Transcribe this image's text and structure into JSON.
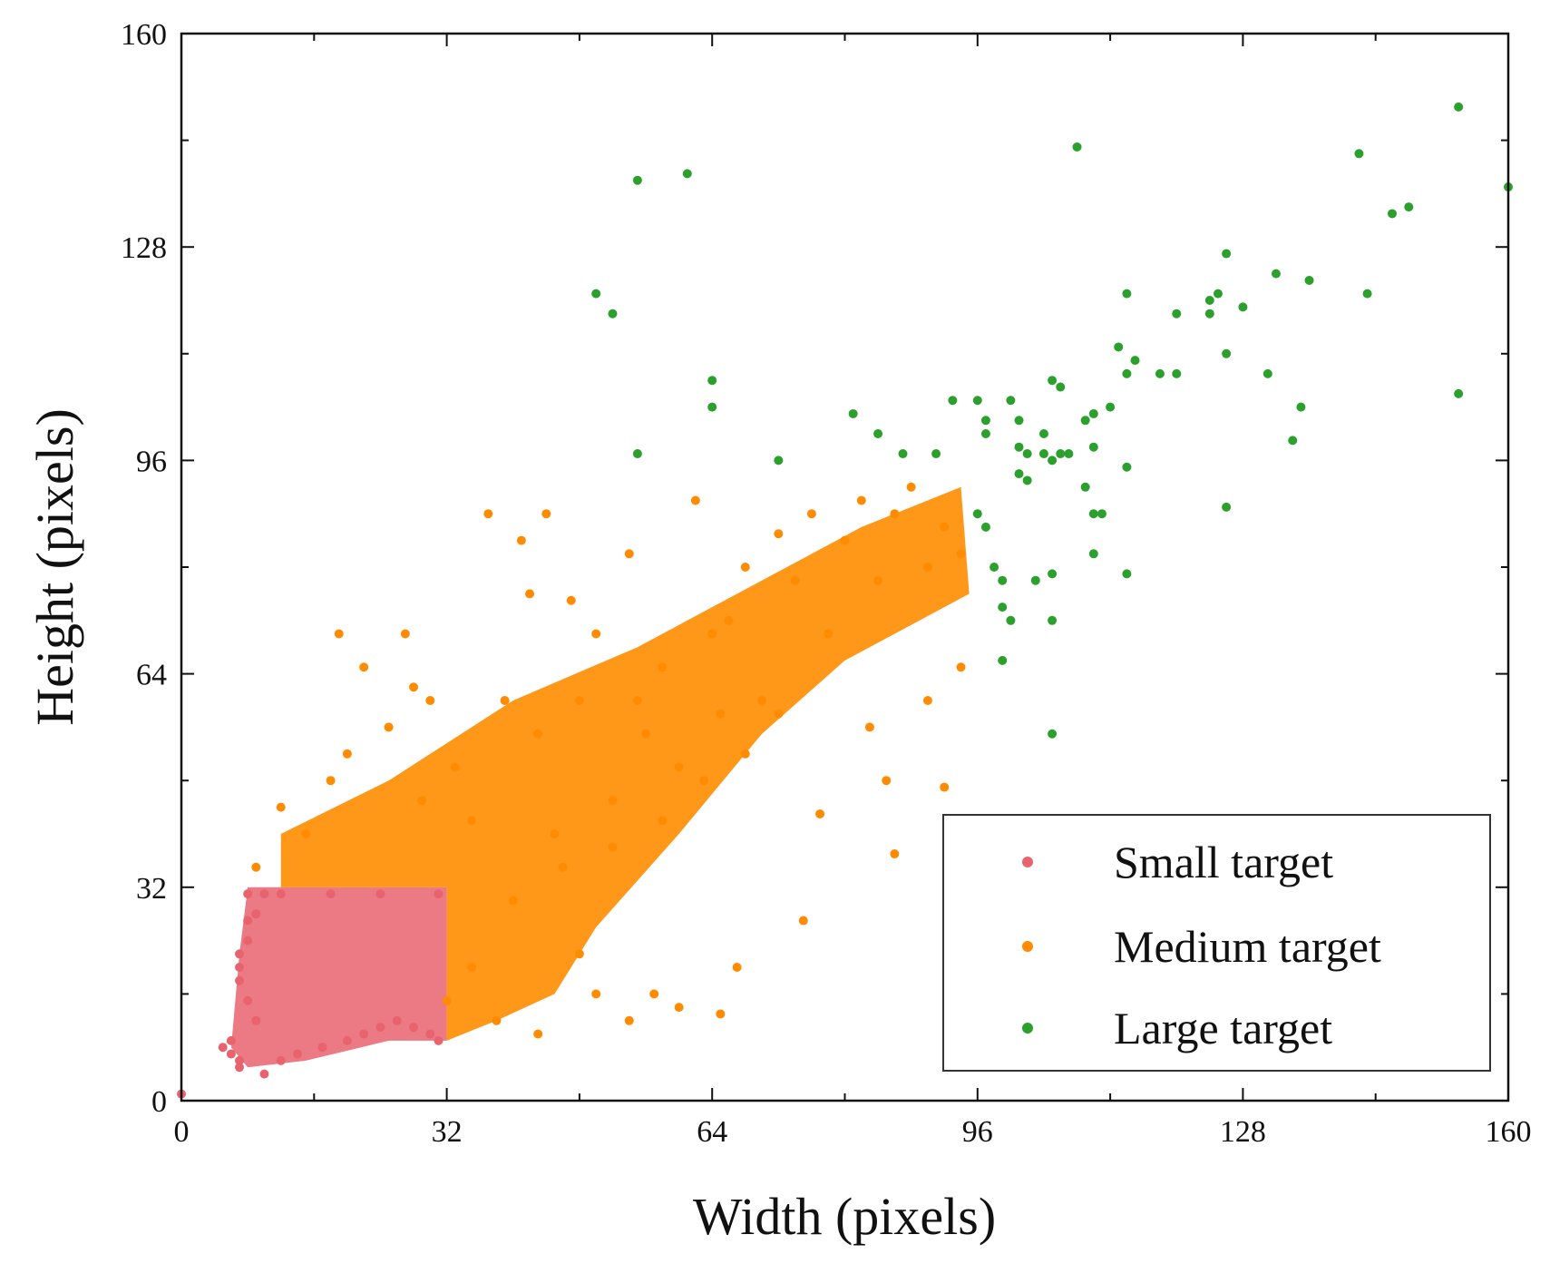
{
  "chart_data": {
    "type": "scatter",
    "title": "",
    "xlabel": "Width (pixels)",
    "ylabel": "Height (pixels)",
    "xlim": [
      0,
      160
    ],
    "ylim": [
      0,
      160
    ],
    "xticks": [
      "0",
      "32",
      "64",
      "96",
      "128",
      "160"
    ],
    "yticks": [
      "0",
      "32",
      "64",
      "96",
      "128",
      "160"
    ],
    "grid": false,
    "legend_position": "bottom-right",
    "series": [
      {
        "name": "Small target",
        "color": "#e8636e",
        "note_region": "dense grid of points filling width 6-32, height 5-32",
        "points": [
          [
            0,
            1
          ],
          [
            5,
            8
          ],
          [
            6,
            7
          ],
          [
            6,
            9
          ],
          [
            7,
            6
          ],
          [
            7,
            5
          ],
          [
            7,
            18
          ],
          [
            7,
            20
          ],
          [
            7,
            22
          ],
          [
            8,
            15
          ],
          [
            8,
            24
          ],
          [
            8,
            27
          ],
          [
            8,
            31
          ],
          [
            9,
            12
          ],
          [
            9,
            28
          ],
          [
            10,
            4
          ],
          [
            10,
            31
          ],
          [
            12,
            6
          ],
          [
            14,
            7
          ],
          [
            17,
            8
          ],
          [
            20,
            9
          ],
          [
            22,
            10
          ],
          [
            24,
            11
          ],
          [
            26,
            12
          ],
          [
            28,
            11
          ],
          [
            30,
            10
          ],
          [
            31,
            9
          ],
          [
            31,
            31
          ],
          [
            12,
            31
          ],
          [
            18,
            31
          ],
          [
            24,
            31
          ]
        ]
      },
      {
        "name": "Medium target",
        "color": "#ff8c00",
        "points": [
          [
            9,
            35
          ],
          [
            12,
            44
          ],
          [
            15,
            40
          ],
          [
            18,
            48
          ],
          [
            19,
            70
          ],
          [
            20,
            52
          ],
          [
            22,
            65
          ],
          [
            25,
            56
          ],
          [
            27,
            70
          ],
          [
            28,
            62
          ],
          [
            30,
            60
          ],
          [
            29,
            45
          ],
          [
            33,
            50
          ],
          [
            37,
            88
          ],
          [
            35,
            42
          ],
          [
            39,
            60
          ],
          [
            41,
            84
          ],
          [
            42,
            76
          ],
          [
            43,
            55
          ],
          [
            44,
            88
          ],
          [
            45,
            40
          ],
          [
            47,
            75
          ],
          [
            48,
            60
          ],
          [
            50,
            70
          ],
          [
            52,
            45
          ],
          [
            54,
            82
          ],
          [
            55,
            60
          ],
          [
            56,
            55
          ],
          [
            58,
            65
          ],
          [
            60,
            50
          ],
          [
            62,
            90
          ],
          [
            64,
            70
          ],
          [
            65,
            58
          ],
          [
            66,
            72
          ],
          [
            68,
            80
          ],
          [
            70,
            60
          ],
          [
            72,
            85
          ],
          [
            74,
            78
          ],
          [
            76,
            88
          ],
          [
            78,
            70
          ],
          [
            80,
            84
          ],
          [
            82,
            90
          ],
          [
            84,
            78
          ],
          [
            86,
            88
          ],
          [
            88,
            92
          ],
          [
            90,
            80
          ],
          [
            92,
            86
          ],
          [
            94,
            82
          ],
          [
            83,
            56
          ],
          [
            85,
            48
          ],
          [
            90,
            60
          ],
          [
            92,
            47
          ],
          [
            94,
            65
          ],
          [
            86,
            37
          ],
          [
            77,
            43
          ],
          [
            75,
            27
          ],
          [
            67,
            20
          ],
          [
            65,
            13
          ],
          [
            60,
            14
          ],
          [
            57,
            16
          ],
          [
            54,
            12
          ],
          [
            50,
            16
          ],
          [
            48,
            22
          ],
          [
            43,
            10
          ],
          [
            38,
            12
          ],
          [
            35,
            20
          ],
          [
            32,
            15
          ],
          [
            40,
            30
          ],
          [
            46,
            35
          ],
          [
            52,
            38
          ],
          [
            58,
            42
          ],
          [
            63,
            48
          ],
          [
            68,
            52
          ],
          [
            72,
            58
          ]
        ]
      },
      {
        "name": "Large target",
        "color": "#2ca02c",
        "points": [
          [
            55,
            138
          ],
          [
            61,
            139
          ],
          [
            50,
            121
          ],
          [
            52,
            118
          ],
          [
            55,
            97
          ],
          [
            64,
            108
          ],
          [
            64,
            104
          ],
          [
            72,
            96
          ],
          [
            81,
            103
          ],
          [
            84,
            100
          ],
          [
            87,
            97
          ],
          [
            91,
            97
          ],
          [
            93,
            105
          ],
          [
            96,
            105
          ],
          [
            96,
            88
          ],
          [
            97,
            102
          ],
          [
            97,
            100
          ],
          [
            97,
            86
          ],
          [
            98,
            80
          ],
          [
            99,
            78
          ],
          [
            99,
            74
          ],
          [
            99,
            66
          ],
          [
            100,
            105
          ],
          [
            100,
            72
          ],
          [
            101,
            98
          ],
          [
            101,
            94
          ],
          [
            101,
            102
          ],
          [
            102,
            93
          ],
          [
            102,
            97
          ],
          [
            103,
            78
          ],
          [
            104,
            97
          ],
          [
            104,
            100
          ],
          [
            105,
            108
          ],
          [
            105,
            96
          ],
          [
            105,
            79
          ],
          [
            105,
            72
          ],
          [
            105,
            55
          ],
          [
            106,
            97
          ],
          [
            106,
            107
          ],
          [
            107,
            97
          ],
          [
            108,
            143
          ],
          [
            109,
            92
          ],
          [
            109,
            102
          ],
          [
            110,
            98
          ],
          [
            110,
            88
          ],
          [
            110,
            103
          ],
          [
            110,
            82
          ],
          [
            111,
            88
          ],
          [
            112,
            104
          ],
          [
            113,
            113
          ],
          [
            114,
            109
          ],
          [
            114,
            121
          ],
          [
            114,
            95
          ],
          [
            114,
            79
          ],
          [
            115,
            111
          ],
          [
            118,
            109
          ],
          [
            120,
            109
          ],
          [
            120,
            118
          ],
          [
            124,
            120
          ],
          [
            124,
            118
          ],
          [
            125,
            121
          ],
          [
            126,
            112
          ],
          [
            126,
            127
          ],
          [
            126,
            89
          ],
          [
            128,
            119
          ],
          [
            131,
            109
          ],
          [
            132,
            124
          ],
          [
            134,
            99
          ],
          [
            136,
            123
          ],
          [
            135,
            104
          ],
          [
            142,
            142
          ],
          [
            143,
            121
          ],
          [
            146,
            133
          ],
          [
            148,
            134
          ],
          [
            154,
            149
          ],
          [
            154,
            106
          ],
          [
            160,
            137
          ]
        ]
      }
    ]
  }
}
